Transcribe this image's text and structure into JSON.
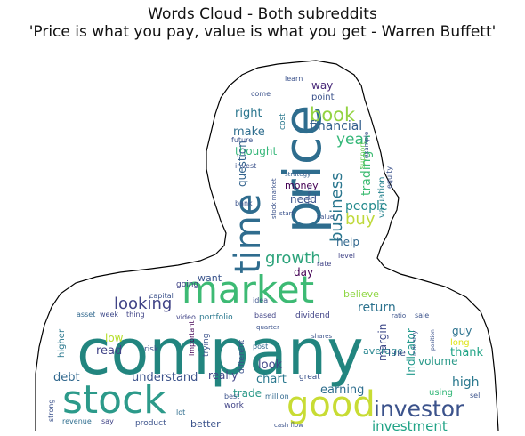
{
  "title": {
    "line1": "Words Cloud - Both subreddits",
    "line2": "'Price is what you pay, value is what you get - Warren Buffett'"
  },
  "words": [
    "company",
    "stock",
    "market",
    "price",
    "good",
    "time",
    "investor",
    "book",
    "business",
    "growth",
    "looking",
    "buy",
    "trading",
    "financial",
    "year",
    "people",
    "return",
    "high",
    "thank",
    "chart",
    "earning",
    "investment",
    "trade",
    "volume",
    "indicator",
    "understand",
    "look",
    "want",
    "read",
    "low",
    "debt",
    "really",
    "make",
    "right",
    "way",
    "point",
    "thought",
    "money",
    "question",
    "need",
    "help",
    "day",
    "believe",
    "level",
    "rate",
    "margin",
    "average",
    "line",
    "guy",
    "long",
    "strategy",
    "valuation",
    "support",
    "cost",
    "better",
    "lot",
    "best",
    "million",
    "using",
    "sell",
    "going",
    "capital",
    "idea",
    "portfolio",
    "video",
    "based",
    "dividend",
    "higher",
    "asset",
    "week",
    "thing",
    "risk",
    "post",
    "different",
    "important",
    "trying",
    "work",
    "product",
    "revenue",
    "strong",
    "say",
    "cash flow",
    "great",
    "learn",
    "come",
    "future",
    "invest",
    "bank",
    "start",
    "mean",
    "equity",
    "example",
    "industry",
    "sale",
    "ratio",
    "value",
    "stock market",
    "quarter",
    "shares",
    "position"
  ]
}
